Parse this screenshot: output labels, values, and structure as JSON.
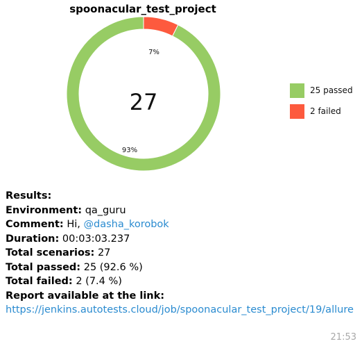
{
  "chart_data": {
    "type": "pie",
    "title": "spoonacular_test_project",
    "center_value": "27",
    "slices": [
      {
        "name": "25 passed",
        "value": 25,
        "pct_label": "93%",
        "color": "#97cc64"
      },
      {
        "name": "2 failed",
        "value": 2,
        "pct_label": "7%",
        "color": "#fd5a3e"
      }
    ],
    "legend_position": "right"
  },
  "message": {
    "results_label": "Results:",
    "environment_label": "Environment:",
    "environment_value": "qa_guru",
    "comment_label": "Comment:",
    "comment_prefix": "Hi,",
    "comment_mention": "@dasha_korobok",
    "duration_label": "Duration:",
    "duration_value": "00:03:03.237",
    "total_scenarios_label": "Total scenarios:",
    "total_scenarios_value": "27",
    "total_passed_label": "Total passed:",
    "total_passed_value": "25 (92.6 %)",
    "total_failed_label": "Total failed:",
    "total_failed_value": "2 (7.4 %)",
    "report_label": "Report available at the link:",
    "report_url": "https://jenkins.autotests.cloud/job/spoonacular_test_project/19/allure",
    "timestamp": "21:53"
  },
  "colors": {
    "link": "#2a8bd0",
    "timestamp": "#a8a8a8"
  }
}
